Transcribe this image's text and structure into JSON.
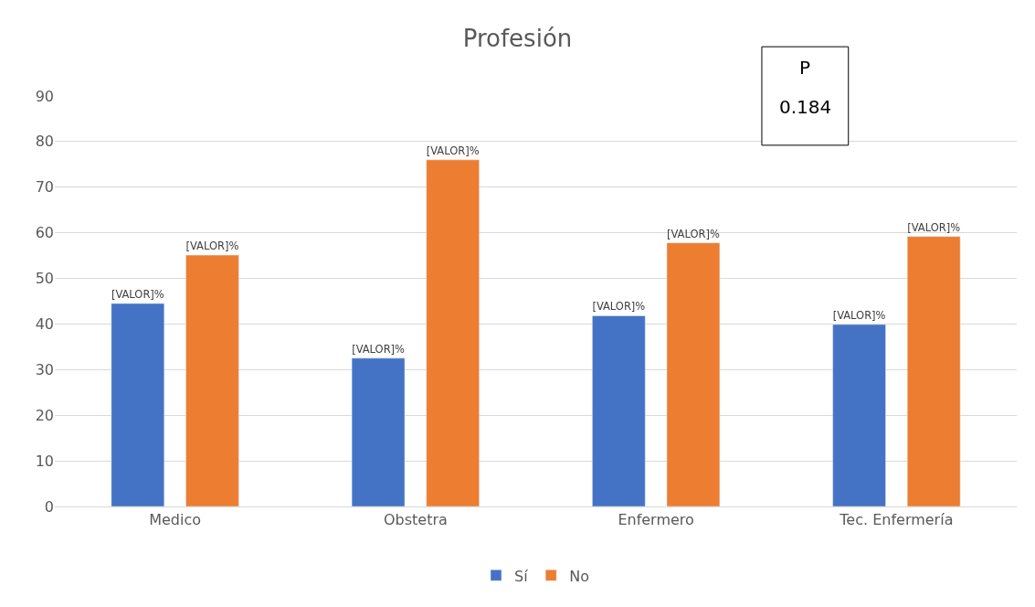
{
  "chart_data": {
    "type": "bar",
    "title": "Profesión",
    "categories": [
      "Medico",
      "Obstetra",
      "Enfermero",
      "Tec. Enfermería"
    ],
    "series": [
      {
        "name": "Sí",
        "color": "#4472c4",
        "values": [
          44.5,
          32.5,
          41.8,
          39.9
        ],
        "value_labels": [
          "[VALOR]%",
          "[VALOR]%",
          "[VALOR]%",
          "[VALOR]%"
        ]
      },
      {
        "name": "No",
        "color": "#ed7d31",
        "values": [
          55.1,
          76.0,
          57.8,
          59.2
        ],
        "value_labels": [
          "[VALOR]%",
          "[VALOR]%",
          "[VALOR]%",
          "[VALOR]%"
        ]
      }
    ],
    "ylim": [
      0,
      90
    ],
    "yticks": [
      0,
      10,
      20,
      30,
      40,
      50,
      60,
      70,
      80,
      90
    ],
    "grid": "y",
    "legend": "bottom",
    "annotations": [
      "P",
      "0.184"
    ]
  }
}
